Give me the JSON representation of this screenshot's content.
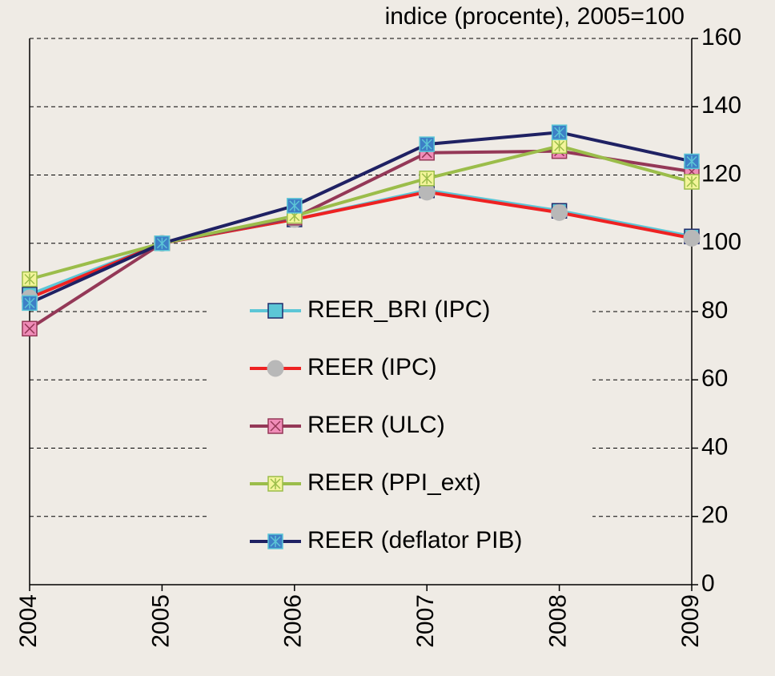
{
  "chart_data": {
    "type": "line",
    "title": "indice (procente), 2005=100",
    "categories": [
      "2004",
      "2005",
      "2006",
      "2007",
      "2008",
      "2009"
    ],
    "ylim": [
      0,
      160
    ],
    "yticks": [
      0,
      20,
      40,
      60,
      80,
      100,
      120,
      140,
      160
    ],
    "grid": true,
    "series": [
      {
        "name": "REER_BRI (IPC)",
        "color": "#5cc6d6",
        "marker": "asterisk-square",
        "marker_fill": "#5cc6d6",
        "marker_stroke": "#1f2a6b",
        "values": [
          85,
          100,
          107,
          115.5,
          109.5,
          102
        ]
      },
      {
        "name": "REER (IPC)",
        "color": "#ee2222",
        "marker": "circle",
        "marker_fill": "#b8b8b8",
        "marker_stroke": "#b8b8b8",
        "values": [
          84,
          100,
          107,
          115,
          109,
          101.5
        ]
      },
      {
        "name": "REER (ULC)",
        "color": "#943857",
        "marker": "x-square",
        "marker_fill": "#f08cb8",
        "marker_stroke": "#943857",
        "values": [
          75,
          100,
          107.5,
          126.5,
          127,
          121
        ]
      },
      {
        "name": "REER (PPI_ext)",
        "color": "#9bbd4a",
        "marker": "asterisk-square",
        "marker_fill": "#f3f59a",
        "marker_stroke": "#9bbd4a",
        "values": [
          89.5,
          100,
          108,
          119,
          128.5,
          118
        ]
      },
      {
        "name": "REER (deflator PIB)",
        "color": "#1f2163",
        "marker": "asterisk-square",
        "marker_fill": "#3d7fc6",
        "marker_stroke": "#5cc6d6",
        "values": [
          82.5,
          100,
          111,
          129,
          132.5,
          124
        ]
      }
    ]
  }
}
